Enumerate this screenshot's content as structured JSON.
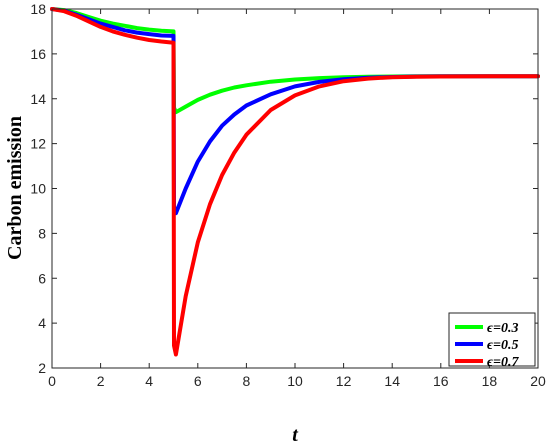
{
  "chart_data": {
    "type": "line",
    "xlabel": "t",
    "ylabel": "Carbon emission",
    "xlim": [
      0,
      20
    ],
    "ylim": [
      2,
      18
    ],
    "xticks": [
      0,
      2,
      4,
      6,
      8,
      10,
      12,
      14,
      16,
      18,
      20
    ],
    "yticks": [
      2,
      4,
      6,
      8,
      10,
      12,
      14,
      16,
      18
    ],
    "grid": false,
    "legend_position": "bottom-right",
    "series": [
      {
        "name": "ϵ=0.3",
        "color": "#00ff00",
        "x": [
          0,
          0.5,
          1,
          1.5,
          2,
          2.5,
          3,
          3.5,
          4,
          4.5,
          5,
          5.02,
          5.1,
          5.5,
          6,
          6.5,
          7,
          7.5,
          8,
          9,
          10,
          11,
          12,
          13,
          14,
          15,
          16,
          18,
          20
        ],
        "y": [
          18,
          17.95,
          17.82,
          17.65,
          17.48,
          17.35,
          17.25,
          17.15,
          17.08,
          17.03,
          17.0,
          13.6,
          13.4,
          13.65,
          13.95,
          14.18,
          14.36,
          14.5,
          14.6,
          14.76,
          14.86,
          14.92,
          14.96,
          14.98,
          14.99,
          15.0,
          15.0,
          15.0,
          15.0
        ]
      },
      {
        "name": "ϵ=0.5",
        "color": "#0000ff",
        "x": [
          0,
          0.5,
          1,
          1.5,
          2,
          2.5,
          3,
          3.5,
          4,
          4.5,
          5,
          5.02,
          5.1,
          5.5,
          6,
          6.5,
          7,
          7.5,
          8,
          9,
          10,
          11,
          12,
          13,
          14,
          15,
          16,
          18,
          20
        ],
        "y": [
          18,
          17.92,
          17.75,
          17.55,
          17.35,
          17.2,
          17.05,
          16.95,
          16.88,
          16.82,
          16.8,
          9.2,
          8.9,
          10.0,
          11.2,
          12.1,
          12.8,
          13.3,
          13.7,
          14.2,
          14.55,
          14.75,
          14.87,
          14.94,
          14.97,
          14.99,
          15.0,
          15.0,
          15.0
        ]
      },
      {
        "name": "ϵ=0.7",
        "color": "#ff0000",
        "x": [
          0,
          0.5,
          1,
          1.5,
          2,
          2.5,
          3,
          3.5,
          4,
          4.5,
          5,
          5.02,
          5.1,
          5.5,
          6,
          6.5,
          7,
          7.5,
          8,
          9,
          10,
          11,
          12,
          13,
          14,
          15,
          16,
          18,
          20
        ],
        "y": [
          18,
          17.9,
          17.7,
          17.45,
          17.2,
          17.0,
          16.85,
          16.72,
          16.62,
          16.55,
          16.5,
          3.0,
          2.6,
          5.2,
          7.6,
          9.3,
          10.6,
          11.6,
          12.4,
          13.5,
          14.15,
          14.55,
          14.78,
          14.9,
          14.96,
          14.98,
          14.99,
          15.0,
          15.0
        ]
      }
    ]
  }
}
